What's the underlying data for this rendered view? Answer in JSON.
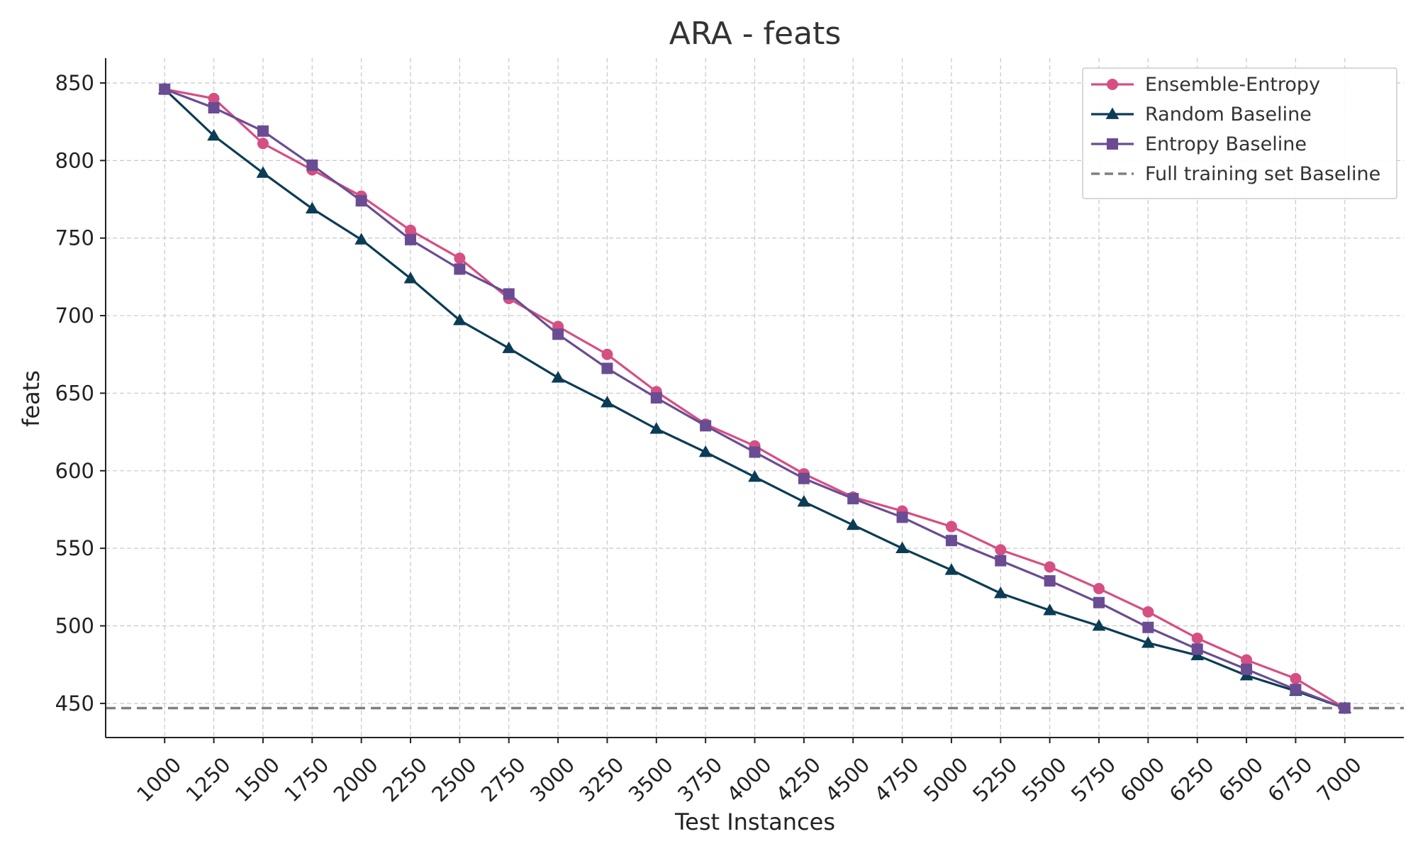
{
  "chart_data": {
    "type": "line",
    "title": "ARA - feats",
    "xlabel": "Test Instances",
    "ylabel": "feats",
    "x": [
      1000,
      1250,
      1500,
      1750,
      2000,
      2250,
      2500,
      2750,
      3000,
      3250,
      3500,
      3750,
      4000,
      4250,
      4500,
      4750,
      5000,
      5250,
      5500,
      5750,
      6000,
      6250,
      6500,
      6750,
      7000
    ],
    "x_tick_labels": [
      "1000",
      "1250",
      "1500",
      "1750",
      "2000",
      "2250",
      "2500",
      "2750",
      "3000",
      "3250",
      "3500",
      "3750",
      "4000",
      "4250",
      "4500",
      "4750",
      "5000",
      "5250",
      "5500",
      "5750",
      "6000",
      "6250",
      "6500",
      "6750",
      "7000"
    ],
    "y_ticks": [
      450,
      500,
      550,
      600,
      650,
      700,
      750,
      800,
      850
    ],
    "xlim": [
      700,
      7300
    ],
    "ylim": [
      428,
      866
    ],
    "grid": true,
    "legend_position": "top-right",
    "series": [
      {
        "name": "Ensemble-Entropy",
        "color": "#d64f82",
        "marker": "circle",
        "values": [
          846,
          840,
          811,
          794,
          777,
          755,
          737,
          711,
          693,
          675,
          651,
          630,
          616,
          598,
          583,
          574,
          564,
          549,
          538,
          524,
          509,
          492,
          478,
          466,
          447
        ]
      },
      {
        "name": "Random Baseline",
        "color": "#0b3c55",
        "marker": "triangle",
        "values": [
          846,
          816,
          792,
          769,
          749,
          724,
          697,
          679,
          660,
          644,
          627,
          612,
          596,
          580,
          565,
          550,
          536,
          521,
          510,
          500,
          489,
          481,
          468,
          458,
          447
        ]
      },
      {
        "name": "Entropy Baseline",
        "color": "#6a4c93",
        "marker": "square",
        "values": [
          846,
          834,
          819,
          797,
          774,
          749,
          730,
          714,
          688,
          666,
          647,
          629,
          612,
          595,
          582,
          570,
          555,
          542,
          529,
          515,
          499,
          485,
          472,
          459,
          447
        ]
      },
      {
        "name": "Full training set Baseline",
        "color": "#808080",
        "marker": "none",
        "line_style": "dashed",
        "constant": 447
      }
    ]
  }
}
